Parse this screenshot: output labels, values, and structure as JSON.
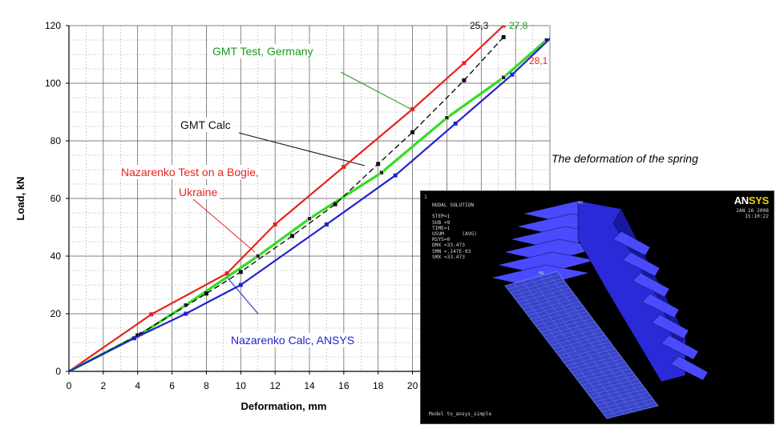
{
  "chart_data": {
    "type": "line",
    "xlabel": "Deformation, mm",
    "ylabel": "Load, kN",
    "xlim": [
      0,
      28
    ],
    "ylim": [
      0,
      120
    ],
    "x_ticks": [
      "0",
      "2",
      "4",
      "6",
      "8",
      "10",
      "12",
      "14",
      "16",
      "18",
      "20"
    ],
    "y_ticks": [
      "0",
      "20",
      "40",
      "60",
      "80",
      "100",
      "120"
    ],
    "grid": true,
    "series": [
      {
        "name": "Nazarenko Test on a Bogie, Ukraine",
        "color": "#e8231f",
        "style": "solid",
        "x": [
          0,
          4.8,
          9.2,
          12,
          16,
          20,
          23,
          25.3
        ],
        "y": [
          0,
          19.8,
          34,
          51,
          71,
          91,
          107,
          120
        ]
      },
      {
        "name": "GMT Test, Germany",
        "color": "#33dd22",
        "style": "solid",
        "x": [
          0,
          4.2,
          6.8,
          11,
          14,
          18.2,
          22,
          25.3,
          27.8
        ],
        "y": [
          0,
          13,
          23,
          40,
          53,
          69,
          88,
          102,
          115
        ]
      },
      {
        "name": "GMT Calc",
        "color": "#111111",
        "style": "dashed",
        "x": [
          0,
          4,
          8,
          10,
          13,
          15.5,
          18,
          20,
          23,
          25.3
        ],
        "y": [
          0,
          12.5,
          27,
          34.5,
          47,
          58,
          72,
          83,
          101,
          116
        ]
      },
      {
        "name": "Nazarenko Calc, ANSYS",
        "color": "#2222cc",
        "style": "solid",
        "x": [
          0,
          3.8,
          6.8,
          10,
          15,
          19,
          22.5,
          25.8,
          28.1
        ],
        "y": [
          0,
          11.5,
          20,
          30,
          51,
          68,
          86,
          103,
          116
        ]
      }
    ],
    "annotations": [
      {
        "text": "25,3",
        "color": "#111111"
      },
      {
        "text": "27,8",
        "color": "#1a9a1a"
      },
      {
        "text": "28,1",
        "color": "#e8231f"
      }
    ],
    "labels": {
      "gmt_test": "GMT Test, Germany",
      "gmt_calc": "GMT Calc",
      "naz_test_1": "Nazarenko Test on a Bogie,",
      "naz_test_2": "Ukraine",
      "naz_calc": "Nazarenko Calc, ANSYS"
    }
  },
  "caption": "The deformation of the spring",
  "ansys": {
    "window_number": "1",
    "logo_an": "AN",
    "logo_sys": "SYS",
    "info_lines": [
      "NODAL SOLUTION",
      "",
      "STEP=1",
      "SUB =9",
      "TIME=1",
      "USUM      (AVG)",
      "RSYS=0",
      "DMX =33.473",
      "SMN =.147E-03",
      "SMX =33.473"
    ],
    "date": "JAN 16 2008",
    "time": "15:10:22",
    "model_label": "Model to_ansys_simple",
    "mx_label": "MX",
    "mn_label": "MN",
    "colors": {
      "background": "#000000",
      "spring": "#2a2ad8",
      "mesh": "#7a90ff"
    }
  }
}
